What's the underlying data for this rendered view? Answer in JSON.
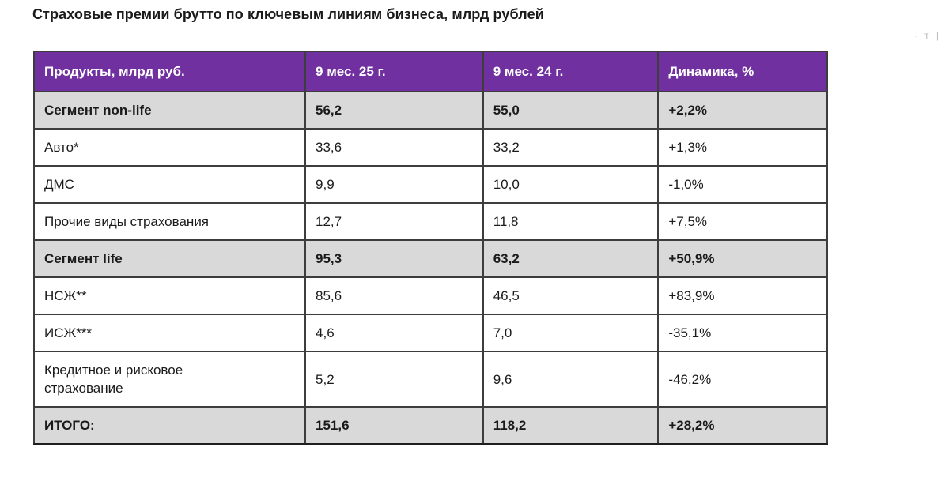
{
  "page": {
    "title": "Страховые премии брутто по ключевым линиям бизнеса, млрд рублей",
    "watermark_fragment": "· т |"
  },
  "colors": {
    "header_bg": "#7030A0",
    "header_text": "#FFFFFF",
    "segment_row_bg": "#D9D9D9",
    "border": "#3D3D3D"
  },
  "table": {
    "columns": [
      "Продукты, млрд руб.",
      "9 мес. 25 г.",
      "9 мес. 24 г.",
      "Динамика, %"
    ],
    "rows": [
      {
        "label": "Сегмент non-life",
        "v25": "56,2",
        "v24": "55,0",
        "dynamics": "+2,2%",
        "emphasis": true,
        "wrap": false
      },
      {
        "label": "Авто*",
        "v25": "33,6",
        "v24": "33,2",
        "dynamics": "+1,3%",
        "emphasis": false,
        "wrap": false
      },
      {
        "label": "ДМС",
        "v25": "9,9",
        "v24": "10,0",
        "dynamics": "-1,0%",
        "emphasis": false,
        "wrap": false
      },
      {
        "label": "Прочие виды страхования",
        "v25": "12,7",
        "v24": "11,8",
        "dynamics": "+7,5%",
        "emphasis": false,
        "wrap": false
      },
      {
        "label": "Сегмент life",
        "v25": "95,3",
        "v24": "63,2",
        "dynamics": "+50,9%",
        "emphasis": true,
        "wrap": false
      },
      {
        "label": "НСЖ**",
        "v25": "85,6",
        "v24": "46,5",
        "dynamics": "+83,9%",
        "emphasis": false,
        "wrap": false
      },
      {
        "label": "ИСЖ***",
        "v25": "4,6",
        "v24": "7,0",
        "dynamics": "-35,1%",
        "emphasis": false,
        "wrap": false
      },
      {
        "label": "Кредитное и рисковое страхование",
        "v25": "5,2",
        "v24": "9,6",
        "dynamics": "-46,2%",
        "emphasis": false,
        "wrap": true
      },
      {
        "label": "ИТОГО:",
        "v25": "151,6",
        "v24": "118,2",
        "dynamics": "+28,2%",
        "emphasis": true,
        "wrap": false
      }
    ]
  }
}
